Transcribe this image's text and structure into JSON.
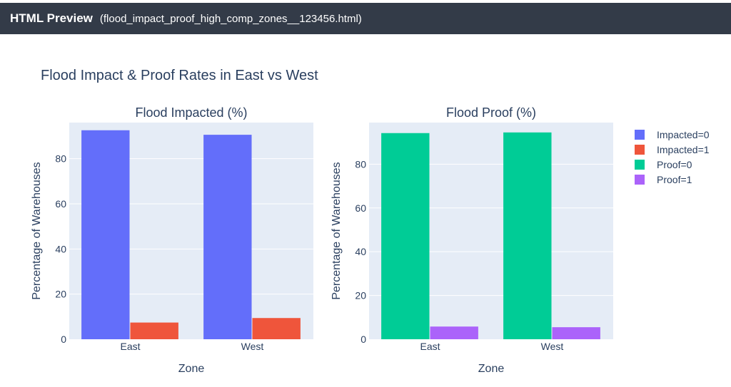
{
  "window": {
    "app_title": "HTML Preview",
    "file_name": "(flood_impact_proof_high_comp_zones__123456.html)"
  },
  "figure": {
    "title": "Flood Impact & Proof Rates in East vs West"
  },
  "legend": {
    "items": [
      {
        "label": "Impacted=0",
        "color": "#636efa"
      },
      {
        "label": "Impacted=1",
        "color": "#ef553b"
      },
      {
        "label": "Proof=0",
        "color": "#00cc96"
      },
      {
        "label": "Proof=1",
        "color": "#ab63fa"
      }
    ]
  },
  "chart_data": [
    {
      "type": "bar",
      "title": "Flood Impacted (%)",
      "xlabel": "Zone",
      "ylabel": "Percentage of Warehouses",
      "categories": [
        "East",
        "West"
      ],
      "ylim": [
        0,
        96
      ],
      "yticks": [
        0,
        20,
        40,
        60,
        80
      ],
      "series": [
        {
          "name": "Impacted=0",
          "color": "#636efa",
          "values": [
            92.6,
            90.6
          ]
        },
        {
          "name": "Impacted=1",
          "color": "#ef553b",
          "values": [
            7.4,
            9.4
          ]
        }
      ]
    },
    {
      "type": "bar",
      "title": "Flood Proof (%)",
      "xlabel": "Zone",
      "ylabel": "Percentage of Warehouses",
      "categories": [
        "East",
        "West"
      ],
      "ylim": [
        0,
        99
      ],
      "yticks": [
        0,
        20,
        40,
        60,
        80
      ],
      "series": [
        {
          "name": "Proof=0",
          "color": "#00cc96",
          "values": [
            94.2,
            94.5
          ]
        },
        {
          "name": "Proof=1",
          "color": "#ab63fa",
          "values": [
            5.8,
            5.5
          ]
        }
      ]
    }
  ]
}
